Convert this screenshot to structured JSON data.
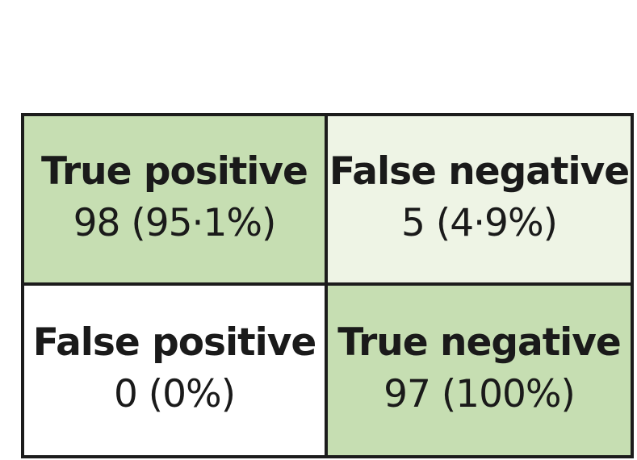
{
  "cells": [
    {
      "label": "True positive",
      "value": "98 (95·1%)",
      "fill": "#c6deb2"
    },
    {
      "label": "False negative",
      "value": "5 (4·9%)",
      "fill": "#eef4e5"
    },
    {
      "label": "False positive",
      "value": "0 (0%)",
      "fill": "#ffffff"
    },
    {
      "label": "True negative",
      "value": "97 (100%)",
      "fill": "#c6deb2"
    }
  ]
}
